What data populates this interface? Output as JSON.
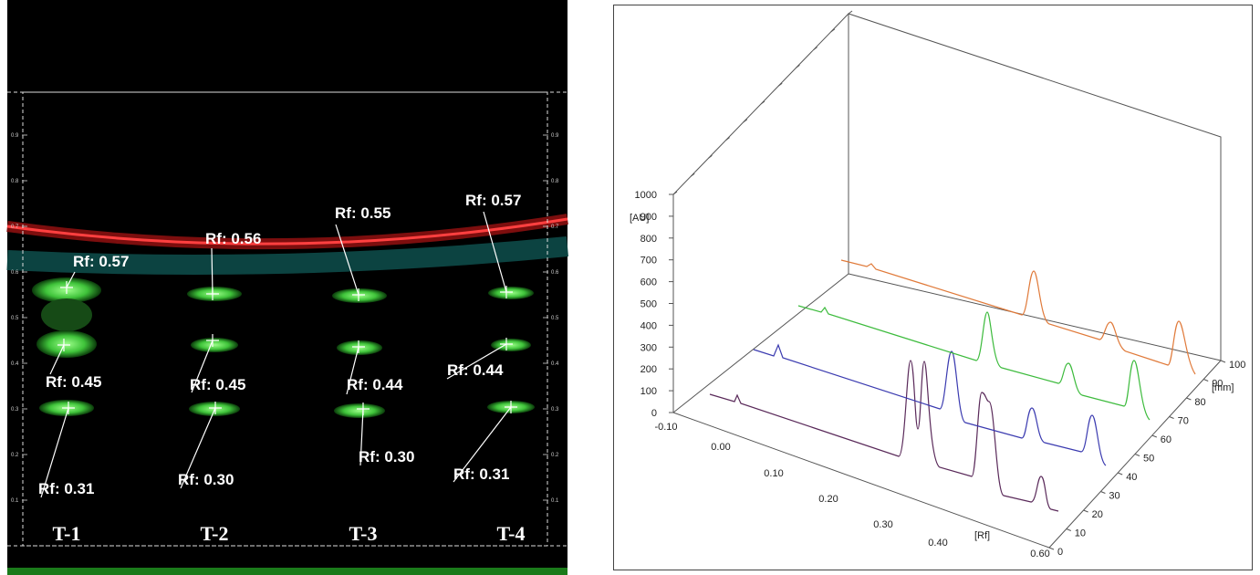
{
  "plate": {
    "lanes": [
      "T-1",
      "T-2",
      "T-3",
      "T-4"
    ],
    "spots": [
      [
        "Rf: 0.57",
        "Rf: 0.45",
        "Rf: 0.31"
      ],
      [
        "Rf: 0.56",
        "Rf: 0.45",
        "Rf: 0.30"
      ],
      [
        "Rf: 0.55",
        "Rf: 0.44",
        "Rf: 0.30"
      ],
      [
        "Rf: 0.57",
        "Rf: 0.44",
        "Rf: 0.31"
      ]
    ],
    "scale": [
      "0.1",
      "0.2",
      "0.3",
      "0.4",
      "0.5",
      "0.6",
      "0.7",
      "0.8",
      "0.9"
    ]
  },
  "densitogram": {
    "y_label": "[AU]",
    "y_ticks": [
      "0",
      "100",
      "200",
      "300",
      "400",
      "500",
      "600",
      "700",
      "800",
      "900",
      "1000"
    ],
    "x_label": "[Rf]",
    "x_ticks": [
      "-0.10",
      "0.00",
      "0.10",
      "0.20",
      "0.30",
      "0.40",
      "0.60"
    ],
    "z_label": "[mm]",
    "z_ticks": [
      "0",
      "10",
      "20",
      "30",
      "40",
      "50",
      "60",
      "70",
      "80",
      "90",
      "100"
    ]
  }
}
